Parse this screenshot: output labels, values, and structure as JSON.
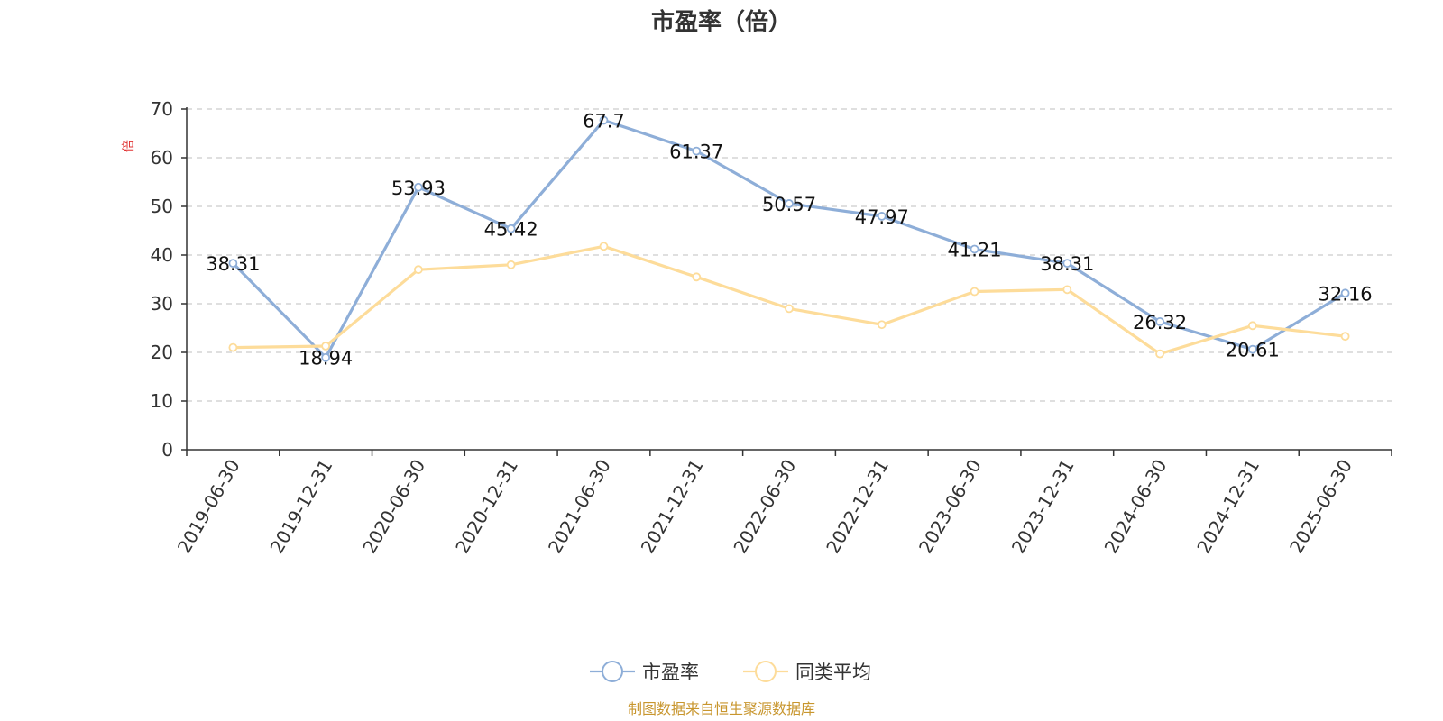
{
  "chart_data": {
    "type": "line",
    "title": "市盈率（倍）",
    "ylabel": "倍",
    "xlabel": "",
    "ylim": [
      0,
      70
    ],
    "yticks": [
      0,
      10,
      20,
      30,
      40,
      50,
      60,
      70
    ],
    "grid": true,
    "legend_position": "bottom-center",
    "categories": [
      "2019-06-30",
      "2019-12-31",
      "2020-06-30",
      "2020-12-31",
      "2021-06-30",
      "2021-12-31",
      "2022-06-30",
      "2022-12-31",
      "2023-06-30",
      "2023-12-31",
      "2024-06-30",
      "2024-12-31",
      "2025-06-30"
    ],
    "series": [
      {
        "name": "市盈率",
        "color": "#8eaed8",
        "show_labels": true,
        "values": [
          38.31,
          18.94,
          53.93,
          45.42,
          67.7,
          61.37,
          50.57,
          47.97,
          41.21,
          38.31,
          26.32,
          20.61,
          32.16
        ],
        "labels": [
          "38.31",
          "18.94",
          "53.93",
          "45.42",
          "67.7",
          "61.37",
          "50.57",
          "47.97",
          "41.21",
          "38.31",
          "26.32",
          "20.61",
          "32.16"
        ]
      },
      {
        "name": "同类平均",
        "color": "#fddc9a",
        "show_labels": false,
        "values": [
          21.0,
          21.3,
          37.0,
          38.0,
          41.8,
          35.5,
          29.0,
          25.7,
          32.5,
          32.9,
          19.7,
          25.5,
          23.3
        ]
      }
    ]
  },
  "footer": {
    "source_text": "制图数据来自恒生聚源数据库",
    "source_color": "#c8962e"
  }
}
